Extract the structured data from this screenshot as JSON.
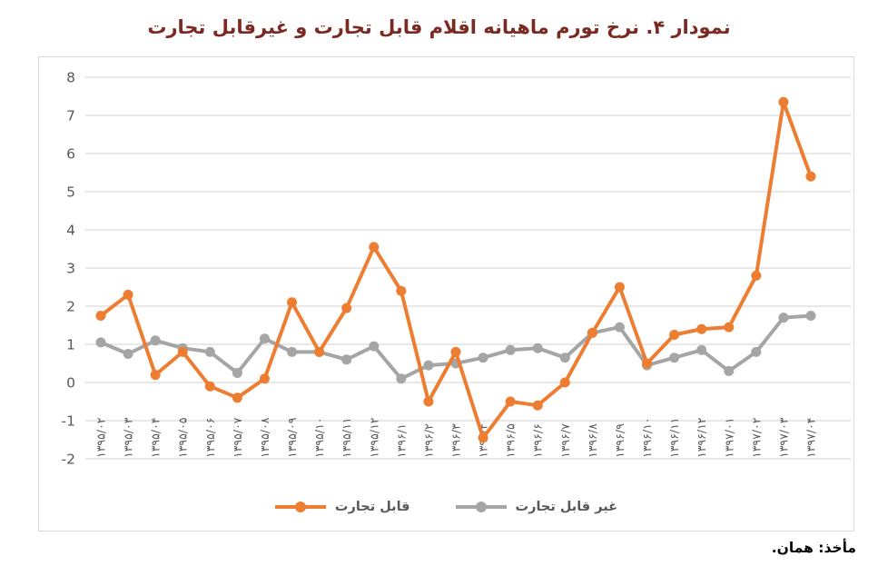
{
  "title": "نمودار ۴. نرخ تورم ماهیانه اقلام قابل تجارت و غیرقابل تجارت",
  "source_note": "مأخذ: همان.",
  "colors": {
    "title": "#7b2a23",
    "tradable": "#ED7D31",
    "nontradable": "#A5A5A5",
    "gridline": "#d9d9d9",
    "axis_text": "#595959",
    "chart_border": "#d9d9d9"
  },
  "legend": {
    "tradable_label": "قابل تجارت",
    "nontradable_label": "غیر قابل تجارت"
  },
  "chart_data": {
    "type": "line",
    "title": "نمودار ۴. نرخ تورم ماهیانه اقلام قابل تجارت و غیرقابل تجارت",
    "categories": [
      "۱۳۹۵/۰۲",
      "۱۳۹۵/۰۳",
      "۱۳۹۵/۰۴",
      "۱۳۹۵/۰۵",
      "۱۳۹۵/۰۶",
      "۱۳۹۵/۰۷",
      "۱۳۹۵/۰۸",
      "۱۳۹۵/۰۹",
      "۱۳۹۵/۱۰",
      "۱۳۹۵/۱۱",
      "۱۳۹۵/۱۲",
      "۱۳۹۶/۱",
      "۱۳۹۶/۲",
      "۱۳۹۶/۳",
      "۱۳۹۶/۴",
      "۱۳۹۶/۵",
      "۱۳۹۶/۶",
      "۱۳۹۶/۷",
      "۱۳۹۶/۸",
      "۱۳۹۶/۹",
      "۱۳۹۶/۱۰",
      "۱۳۹۶/۱۱",
      "۱۳۹۶/۱۲",
      "۱۳۹۷/۰۱",
      "۱۳۹۷/۰۲",
      "۱۳۹۷/۰۳",
      "۱۳۹۷/۰۴"
    ],
    "series": [
      {
        "name": "قابل تجارت",
        "color": "#ED7D31",
        "values": [
          1.75,
          2.3,
          0.2,
          0.8,
          -0.1,
          -0.4,
          0.1,
          2.1,
          0.8,
          1.95,
          3.55,
          2.4,
          -0.5,
          0.8,
          -1.45,
          -0.5,
          -0.6,
          0.0,
          1.3,
          2.5,
          0.5,
          1.25,
          1.4,
          1.45,
          2.8,
          7.35,
          5.4
        ]
      },
      {
        "name": "غیر قابل تجارت",
        "color": "#A5A5A5",
        "values": [
          1.05,
          0.75,
          1.1,
          0.9,
          0.8,
          0.25,
          1.15,
          0.8,
          0.8,
          0.6,
          0.95,
          0.1,
          0.45,
          0.5,
          0.65,
          0.85,
          0.9,
          0.65,
          1.3,
          1.45,
          0.45,
          0.65,
          0.85,
          0.3,
          0.8,
          1.7,
          1.75
        ]
      }
    ],
    "ylim": [
      -2,
      8
    ],
    "y_ticks": [
      8,
      7,
      6,
      5,
      4,
      3,
      2,
      1,
      0,
      -1,
      -2
    ],
    "xlabel": "",
    "ylabel": "",
    "grid": true,
    "legend_position": "bottom"
  }
}
